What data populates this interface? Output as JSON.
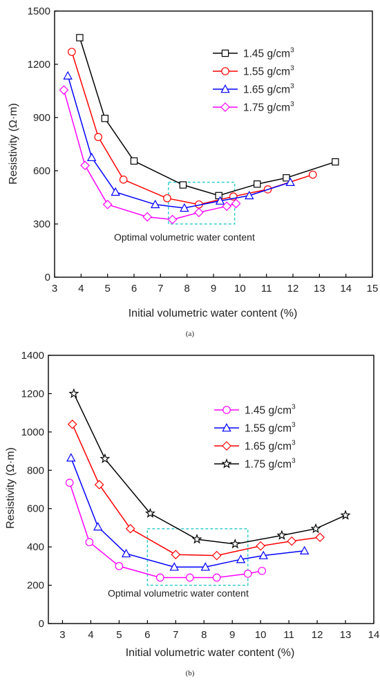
{
  "chart_data": [
    {
      "type": "line",
      "xlabel": "Initial volumetric water content (%)",
      "ylabel": "Resistivity (Ω·m)",
      "xlim": [
        3,
        15
      ],
      "ylim": [
        0,
        1500
      ],
      "xticks": [
        3,
        4,
        5,
        6,
        7,
        8,
        9,
        10,
        11,
        12,
        13,
        14,
        15
      ],
      "yticks": [
        0,
        300,
        600,
        900,
        1200,
        1500
      ],
      "legend_position": "top-right",
      "annotation": "Optimal volumetric water content",
      "optimal_box": {
        "x": [
          7.3,
          9.8
        ],
        "y": [
          300,
          535
        ]
      },
      "caption": "(a)",
      "series": [
        {
          "name": "1.45 g/cm",
          "unit_sup": "3",
          "color": "#000000",
          "marker": "square",
          "x": [
            3.95,
            4.9,
            6.0,
            7.85,
            9.2,
            10.65,
            11.75,
            13.6
          ],
          "y": [
            1350,
            895,
            655,
            520,
            460,
            525,
            560,
            650
          ]
        },
        {
          "name": "1.55 g/cm",
          "unit_sup": "3",
          "color": "#ff0000",
          "marker": "circle",
          "x": [
            3.65,
            4.65,
            5.6,
            7.25,
            8.45,
            9.75,
            11.05,
            12.75
          ],
          "y": [
            1270,
            790,
            550,
            445,
            410,
            455,
            495,
            578
          ]
        },
        {
          "name": "1.65 g/cm",
          "unit_sup": "3",
          "color": "#0000ff",
          "marker": "triangle",
          "x": [
            3.5,
            4.4,
            5.3,
            6.8,
            7.9,
            9.25,
            10.35,
            11.9
          ],
          "y": [
            1135,
            675,
            480,
            410,
            390,
            430,
            460,
            535
          ]
        },
        {
          "name": "1.75 g/cm",
          "unit_sup": "3",
          "color": "#ff00ff",
          "marker": "diamond",
          "x": [
            3.35,
            4.15,
            5.0,
            6.5,
            7.45,
            8.45,
            9.5,
            9.85
          ],
          "y": [
            1055,
            630,
            410,
            340,
            325,
            365,
            400,
            415
          ]
        }
      ]
    },
    {
      "type": "line",
      "xlabel": "Initial volumetric water content (%)",
      "ylabel": "Resistivity (Ω·m)",
      "xlim": [
        2.5,
        14
      ],
      "ylim": [
        0,
        1400
      ],
      "xticks": [
        3,
        4,
        5,
        6,
        7,
        8,
        9,
        10,
        11,
        12,
        13,
        14
      ],
      "yticks": [
        0,
        200,
        400,
        600,
        800,
        1000,
        1200,
        1400
      ],
      "legend_position": "top-right",
      "annotation": "Optimal volumetric water content",
      "optimal_box": {
        "x": [
          6.0,
          9.55
        ],
        "y": [
          200,
          495
        ]
      },
      "caption": "(b)",
      "series": [
        {
          "name": "1.45 g/cm",
          "unit_sup": "3",
          "color": "#ff00ff",
          "marker": "circle",
          "x": [
            3.25,
            3.95,
            5.0,
            6.45,
            7.5,
            8.45,
            9.55,
            10.05
          ],
          "y": [
            735,
            425,
            300,
            240,
            240,
            240,
            260,
            275
          ]
        },
        {
          "name": "1.55 g/cm",
          "unit_sup": "3",
          "color": "#0000ff",
          "marker": "triangle",
          "x": [
            3.3,
            4.25,
            5.25,
            6.95,
            8.05,
            9.3,
            10.1,
            11.55
          ],
          "y": [
            865,
            505,
            365,
            295,
            295,
            335,
            355,
            380
          ]
        },
        {
          "name": "1.65 g/cm",
          "unit_sup": "3",
          "color": "#ff0000",
          "marker": "diamond",
          "x": [
            3.35,
            4.3,
            5.4,
            7.0,
            8.45,
            10.0,
            11.1,
            12.1
          ],
          "y": [
            1040,
            725,
            495,
            360,
            355,
            405,
            430,
            450
          ]
        },
        {
          "name": "1.75 g/cm",
          "unit_sup": "3",
          "color": "#000000",
          "marker": "star",
          "x": [
            3.4,
            4.5,
            6.1,
            7.75,
            9.1,
            10.75,
            11.95,
            13.0
          ],
          "y": [
            1200,
            860,
            575,
            440,
            415,
            460,
            495,
            565
          ]
        }
      ]
    }
  ]
}
